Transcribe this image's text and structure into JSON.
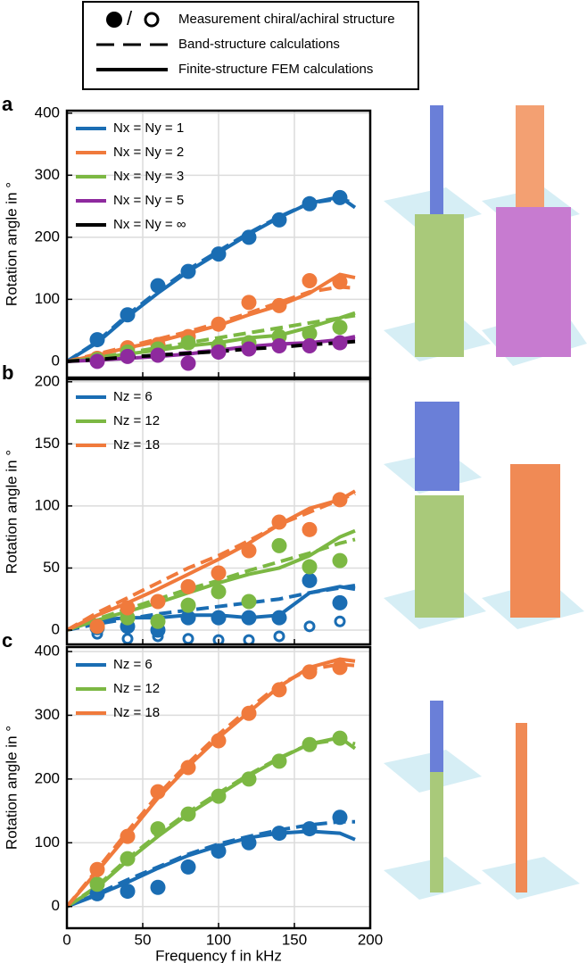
{
  "legend": {
    "measurement": "Measurement chiral/achiral structure",
    "band": "Band-structure calculations",
    "fem": "Finite-structure FEM calculations"
  },
  "chart_data": [
    {
      "type": "line",
      "panel": "a",
      "ylabel": "Rotation angle in °",
      "xlim": [
        0,
        200
      ],
      "xticks": [
        0,
        50,
        100,
        150,
        200
      ],
      "ylim": [
        -26,
        404
      ],
      "yticks": [
        0,
        100,
        200,
        300,
        400
      ],
      "grid": true,
      "x": [
        20,
        40,
        60,
        80,
        100,
        120,
        140,
        160,
        180
      ],
      "line_x": [
        0,
        20,
        40,
        60,
        80,
        100,
        120,
        140,
        160,
        180,
        190
      ],
      "series": [
        {
          "name": "Nx = Ny = 1",
          "color": "#1a6db3",
          "values": [
            35,
            75,
            122,
            145,
            173,
            200,
            228,
            254,
            264
          ],
          "fem": [
            0,
            30,
            72,
            110,
            145,
            175,
            205,
            232,
            255,
            265,
            248
          ],
          "band": [
            0,
            32,
            75,
            113,
            148,
            178,
            207,
            233,
            255,
            262,
            255
          ]
        },
        {
          "name": "Nx = Ny = 2",
          "color": "#f07a3c",
          "values": [
            5,
            22,
            27,
            40,
            60,
            95,
            90,
            130,
            128
          ],
          "fem": [
            0,
            10,
            22,
            32,
            45,
            58,
            75,
            90,
            110,
            140,
            135
          ],
          "band": [
            0,
            12,
            24,
            36,
            48,
            62,
            78,
            95,
            112,
            120,
            118
          ]
        },
        {
          "name": "Nx = Ny = 3",
          "color": "#7cb843",
          "values": [
            3,
            15,
            20,
            30,
            25,
            30,
            40,
            45,
            55
          ],
          "fem": [
            0,
            5,
            12,
            18,
            25,
            30,
            38,
            42,
            55,
            70,
            78
          ],
          "band": [
            0,
            6,
            14,
            22,
            30,
            38,
            46,
            54,
            62,
            70,
            74
          ]
        },
        {
          "name": "Nx = Ny = 5",
          "color": "#8e2a9e",
          "values": [
            0,
            8,
            10,
            -3,
            15,
            20,
            25,
            25,
            30
          ],
          "fem": [
            0,
            2,
            5,
            8,
            12,
            18,
            24,
            28,
            30,
            35,
            40
          ],
          "band": [
            0,
            3,
            6,
            10,
            14,
            18,
            22,
            26,
            30,
            34,
            36
          ]
        },
        {
          "name": "Nx = Ny = ∞",
          "color": "#000000",
          "band": [
            0,
            3,
            7,
            10,
            13,
            16,
            20,
            23,
            27,
            30,
            32
          ]
        }
      ]
    },
    {
      "type": "line",
      "panel": "b",
      "ylabel": "Rotation angle in °",
      "xlim": [
        0,
        200
      ],
      "xticks": [
        0,
        50,
        100,
        150,
        200
      ],
      "ylim": [
        -11.5,
        202
      ],
      "yticks": [
        0,
        50,
        100,
        150,
        200
      ],
      "grid": true,
      "x": [
        20,
        40,
        60,
        80,
        100,
        120,
        140,
        160,
        180
      ],
      "line_x": [
        0,
        20,
        40,
        60,
        80,
        100,
        120,
        140,
        160,
        180,
        190
      ],
      "series": [
        {
          "name": "Nz = 6",
          "color": "#1a6db3",
          "values": [
            2,
            3,
            0,
            10,
            10,
            10,
            10,
            40,
            22
          ],
          "achiral_values": [
            -3,
            -7,
            -5,
            -7,
            -8,
            -8,
            -5,
            3,
            7
          ],
          "fem": [
            0,
            8,
            10,
            10,
            12,
            12,
            10,
            12,
            30,
            35,
            33
          ],
          "band": [
            0,
            5,
            9,
            13,
            16,
            19,
            22,
            25,
            30,
            34,
            36
          ]
        },
        {
          "name": "Nz = 12",
          "color": "#7cb843",
          "values": [
            3,
            10,
            7,
            20,
            31,
            23,
            68,
            51,
            56
          ],
          "fem": [
            0,
            8,
            15,
            22,
            30,
            38,
            45,
            50,
            60,
            75,
            80
          ],
          "band": [
            0,
            9,
            17,
            25,
            33,
            40,
            48,
            55,
            62,
            70,
            73
          ]
        },
        {
          "name": "Nz = 18",
          "color": "#f07a3c",
          "values": [
            3,
            18,
            23,
            35,
            46,
            64,
            87,
            81,
            105
          ],
          "fem": [
            0,
            12,
            22,
            33,
            45,
            57,
            70,
            85,
            98,
            105,
            112
          ],
          "band": [
            0,
            14,
            26,
            38,
            50,
            60,
            72,
            85,
            95,
            105,
            110
          ]
        }
      ]
    },
    {
      "type": "line",
      "panel": "c",
      "ylabel": "Rotation angle in °",
      "xlabel": "Frequency f in kHz",
      "xlim": [
        0,
        200
      ],
      "xticks": [
        0,
        50,
        100,
        150,
        200
      ],
      "ylim": [
        -34,
        407
      ],
      "yticks": [
        0,
        100,
        200,
        300,
        400
      ],
      "grid": true,
      "x": [
        20,
        40,
        60,
        80,
        100,
        120,
        140,
        160,
        180
      ],
      "line_x": [
        0,
        20,
        40,
        60,
        80,
        100,
        120,
        140,
        160,
        180,
        190
      ],
      "series": [
        {
          "name": "Nz = 6",
          "color": "#1a6db3",
          "values": [
            20,
            24,
            30,
            62,
            87,
            100,
            115,
            122,
            140
          ],
          "fem": [
            0,
            18,
            38,
            60,
            80,
            95,
            108,
            115,
            118,
            115,
            105
          ],
          "band": [
            0,
            20,
            42,
            62,
            82,
            98,
            110,
            120,
            128,
            133,
            133
          ]
        },
        {
          "name": "Nz = 12",
          "color": "#7cb843",
          "values": [
            35,
            75,
            122,
            145,
            173,
            200,
            228,
            254,
            264
          ],
          "fem": [
            0,
            30,
            72,
            110,
            145,
            175,
            205,
            232,
            255,
            265,
            248
          ],
          "band": [
            0,
            32,
            75,
            113,
            148,
            178,
            207,
            233,
            255,
            262,
            255
          ]
        },
        {
          "name": "Nz = 18",
          "color": "#f07a3c",
          "values": [
            58,
            110,
            180,
            218,
            260,
            303,
            340,
            368,
            375
          ],
          "fem": [
            0,
            55,
            112,
            170,
            220,
            265,
            305,
            345,
            375,
            388,
            385
          ],
          "band": [
            0,
            58,
            118,
            175,
            225,
            270,
            310,
            348,
            372,
            380,
            378
          ]
        }
      ]
    }
  ]
}
